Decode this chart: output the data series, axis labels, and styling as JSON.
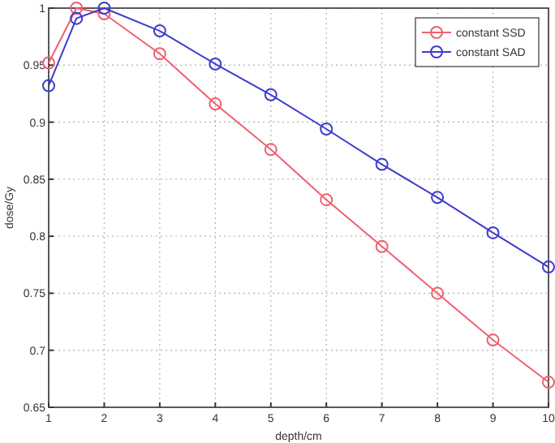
{
  "chart_data": {
    "type": "line",
    "xlabel": "depth/cm",
    "ylabel": "dose/Gy",
    "xlim": [
      1,
      10
    ],
    "xticks": [
      1,
      2,
      3,
      4,
      5,
      6,
      7,
      8,
      9,
      10
    ],
    "ylim": [
      0.65,
      1
    ],
    "yticks": [
      0.65,
      0.7,
      0.75,
      0.8,
      0.85,
      0.9,
      0.95,
      1
    ],
    "grid": true,
    "legend": "top right",
    "marker": "circle",
    "line_style": "solid",
    "series": [
      {
        "name": "constant SSD",
        "color": "#f06070",
        "x": [
          1,
          1.5,
          2,
          3,
          4,
          5,
          6,
          7,
          8,
          9,
          10
        ],
        "values": [
          0.952,
          1.0,
          0.995,
          0.96,
          0.916,
          0.876,
          0.832,
          0.791,
          0.75,
          0.709,
          0.672
        ]
      },
      {
        "name": "constant SAD",
        "color": "#3c3ccc",
        "x": [
          1,
          1.5,
          2,
          3,
          4,
          5,
          6,
          7,
          8,
          9,
          10
        ],
        "values": [
          0.932,
          0.991,
          1.0,
          0.98,
          0.951,
          0.924,
          0.894,
          0.863,
          0.834,
          0.803,
          0.773
        ]
      }
    ]
  }
}
